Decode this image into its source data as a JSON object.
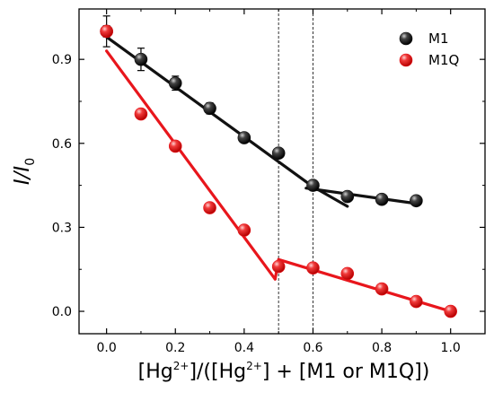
{
  "chart_data": {
    "type": "scatter",
    "xlabel": {
      "parts": [
        {
          "t": "[Hg"
        },
        {
          "t": "2+",
          "sup": true
        },
        {
          "t": "]/([Hg"
        },
        {
          "t": "2+",
          "sup": true
        },
        {
          "t": "] + [M1 or M1Q])"
        }
      ]
    },
    "ylabel": {
      "main": "I/I",
      "sub": "0"
    },
    "xlim": [
      -0.08,
      1.1
    ],
    "ylim": [
      -0.08,
      1.08
    ],
    "xticks": [
      0.0,
      0.2,
      0.4,
      0.6,
      0.8,
      1.0
    ],
    "xtick_labels": [
      "0.0",
      "0.2",
      "0.4",
      "0.6",
      "0.8",
      "1.0"
    ],
    "yticks": [
      0.0,
      0.3,
      0.6,
      0.9
    ],
    "ytick_labels": [
      "0.0",
      "0.3",
      "0.6",
      "0.9"
    ],
    "vlines": [
      0.5,
      0.6
    ],
    "legend_position": "top-right",
    "series": [
      {
        "name": "M1",
        "color": "#111111",
        "x": [
          0.0,
          0.1,
          0.2,
          0.3,
          0.4,
          0.5,
          0.6,
          0.7,
          0.8,
          0.9
        ],
        "y": [
          1.0,
          0.9,
          0.815,
          0.725,
          0.62,
          0.565,
          0.45,
          0.41,
          0.4,
          0.395
        ],
        "yerr": [
          0.055,
          0.04,
          0.025,
          0.02,
          0.015,
          0.015,
          0.015,
          0.012,
          0.012,
          0.012
        ],
        "fits": [
          [
            [
              0.0,
              0.98
            ],
            [
              0.6,
              0.445
            ]
          ],
          [
            [
              0.6,
              0.445
            ],
            [
              0.7,
              0.375
            ]
          ],
          [
            [
              0.58,
              0.44
            ],
            [
              0.9,
              0.385
            ]
          ]
        ]
      },
      {
        "name": "M1Q",
        "color": "#e8161c",
        "x": [
          0.0,
          0.1,
          0.2,
          0.3,
          0.4,
          0.5,
          0.6,
          0.7,
          0.8,
          0.9,
          1.0
        ],
        "y": [
          1.0,
          0.705,
          0.59,
          0.37,
          0.29,
          0.16,
          0.155,
          0.135,
          0.08,
          0.035,
          0.0
        ],
        "yerr": [
          0.02,
          0.015,
          0.015,
          0.012,
          0.012,
          0.012,
          0.012,
          0.012,
          0.01,
          0.01,
          0.01
        ],
        "fits": [
          [
            [
              0.0,
              0.93
            ],
            [
              0.49,
              0.115
            ]
          ],
          [
            [
              0.49,
              0.115
            ],
            [
              0.5,
              0.185
            ]
          ],
          [
            [
              0.5,
              0.185
            ],
            [
              1.0,
              0.0
            ]
          ]
        ]
      }
    ]
  }
}
